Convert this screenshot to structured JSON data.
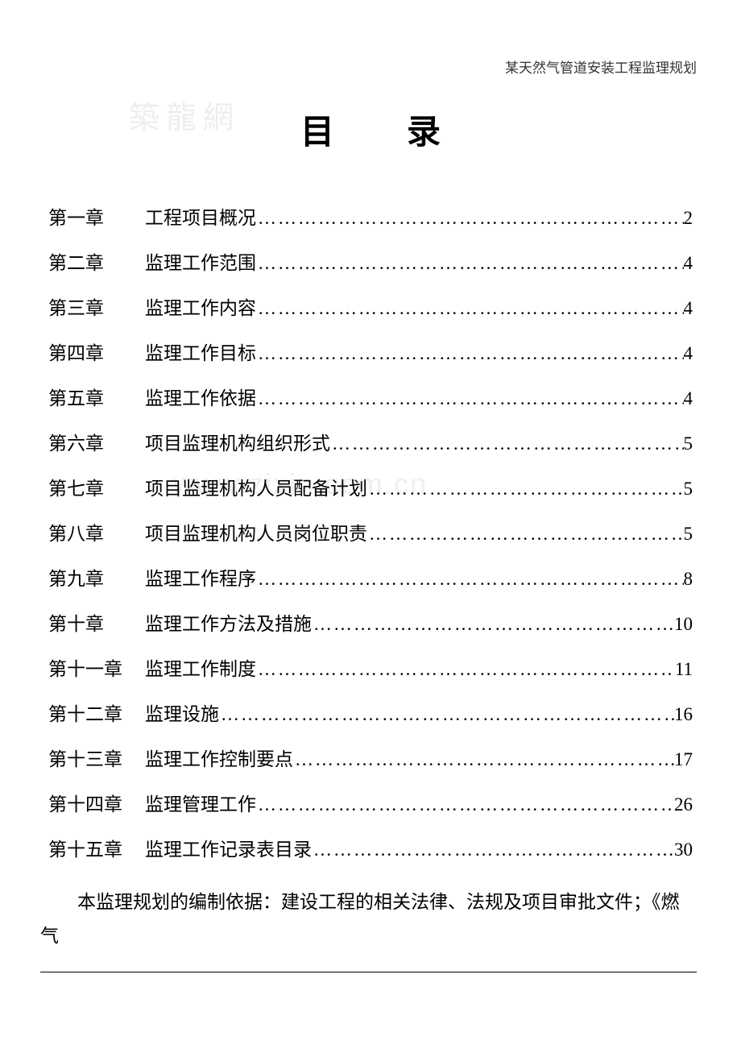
{
  "header": "某天然气管道安装工程监理规划",
  "watermark_top": "築龍網",
  "watermark_mid": "www.zixin.com.cn",
  "title": "目录",
  "dots": "…………………………………………………………………………",
  "toc_entries": [
    {
      "chapter": "第一章",
      "title": "工程项目概况",
      "page": "2"
    },
    {
      "chapter": "第二章",
      "title": "监理工作范围",
      "page": "4"
    },
    {
      "chapter": "第三章",
      "title": "监理工作内容",
      "page": "4"
    },
    {
      "chapter": "第四章",
      "title": "监理工作目标",
      "page": "4"
    },
    {
      "chapter": "第五章",
      "title": "监理工作依据",
      "page": "4"
    },
    {
      "chapter": "第六章",
      "title": "项目监理机构组织形式",
      "page": "5"
    },
    {
      "chapter": "第七章",
      "title": "项目监理机构人员配备计划",
      "page": "5"
    },
    {
      "chapter": "第八章",
      "title": "项目监理机构人员岗位职责",
      "page": "5"
    },
    {
      "chapter": "第九章",
      "title": "监理工作程序",
      "page": "8"
    },
    {
      "chapter": "第十章",
      "title": "监理工作方法及措施",
      "page": "10"
    },
    {
      "chapter": "第十一章",
      "title": "监理工作制度",
      "page": "11"
    },
    {
      "chapter": "第十二章",
      "title": "监理设施",
      "page": "16"
    },
    {
      "chapter": "第十三章",
      "title": "监理工作控制要点",
      "page": "17"
    },
    {
      "chapter": "第十四章",
      "title": "监理管理工作",
      "page": "26"
    },
    {
      "chapter": "第十五章",
      "title": "监理工作记录表目录",
      "page": "30"
    }
  ],
  "body_paragraph": "本监理规划的编制依据：建设工程的相关法律、法规及项目审批文件；《燃气"
}
